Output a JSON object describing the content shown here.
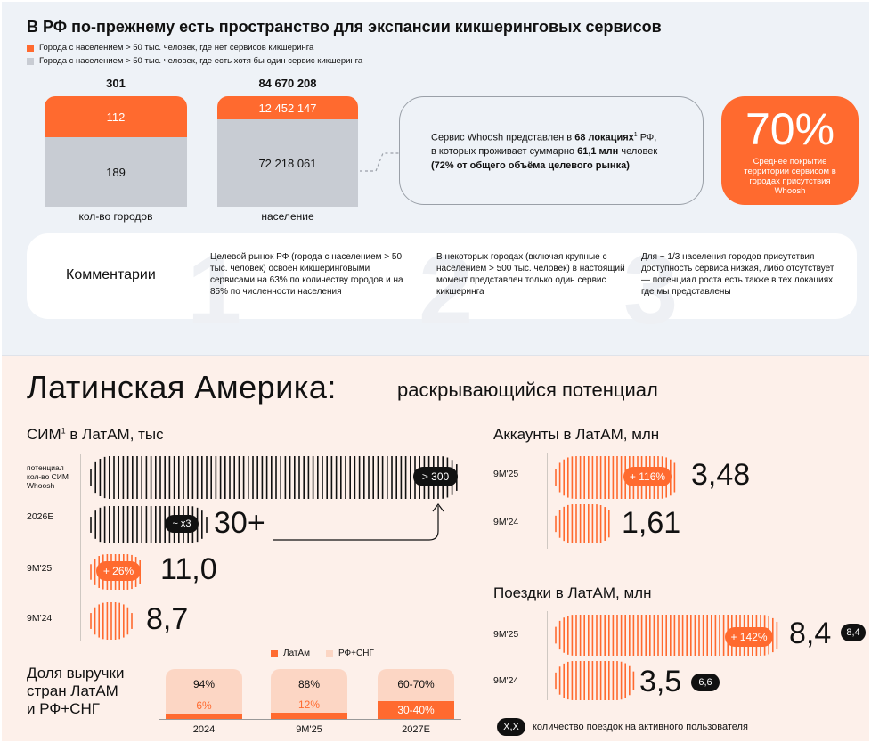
{
  "top": {
    "title": "В РФ по-прежнему есть пространство для экспансии кикшеринговых сервисов",
    "legend": [
      {
        "label": "Города с населением > 50 тыс. человек, где нет сервисов кикшеринга",
        "color": "#ff6a2f"
      },
      {
        "label": "Города с населением > 50 тыс. человек, где есть хотя бы один сервис кикшеринга",
        "color": "#c8ccd3"
      }
    ],
    "bars": [
      {
        "total": "301",
        "top_value": "112",
        "bottom_value": "189",
        "label": "кол-во городов"
      },
      {
        "total": "84 670 208",
        "top_value": "12 452 147",
        "bottom_value": "72 218 061",
        "label": "население"
      }
    ],
    "whoosh": {
      "line1": "Сервис Whoosh представлен в",
      "line1_bold": "68 локациях",
      "line1_sup": "1",
      "line1_end": "РФ,",
      "line2": "в которых проживает суммарно",
      "line2_bold": "61,1 млн",
      "line2_end": "человек",
      "line3_bold": "(72% от общего объёма целевого рынка)"
    },
    "coverage": {
      "value": "70%",
      "text": "Среднее покрытие территории сервисом в городах присутствия Whoosh"
    },
    "comments": {
      "title": "Комментарии",
      "digits": [
        "1",
        "2",
        "3"
      ],
      "items": [
        "Целевой рынок РФ (города с населением > 50 тыс. человек) освоен кикшеринговыми сервисами на 63% по количеству городов и на 85% по численности населения",
        "В некоторых городах (включая крупные с населением > 500 тыс. человек) в настоящий момент представлен только один сервис кикшеринга",
        "Для ~ 1/3 населения городов присутствия доступность сервиса низкая, либо отсутствует — потенциал роста есть также в тех локациях, где мы представлены"
      ]
    }
  },
  "latam": {
    "title": "Латинская Америка:",
    "subtitle": "раскрывающийся потенциал",
    "sim": {
      "heading": "СИМ",
      "heading_sup": "1",
      "heading_end": "в ЛатАМ, тыс",
      "rows": [
        {
          "label": "потенциал кол-во СИМ Whoosh",
          "value": "> 300",
          "badge": ""
        },
        {
          "label": "2026E",
          "value": "30+",
          "badge": "~ x3"
        },
        {
          "label": "9М'25",
          "value": "11,0",
          "badge": "+ 26%"
        },
        {
          "label": "9М'24",
          "value": "8,7",
          "badge": ""
        }
      ]
    },
    "accounts": {
      "heading": "Аккаунты в ЛатАМ, млн",
      "rows": [
        {
          "label": "9М'25",
          "value": "3,48",
          "badge": "+ 116%"
        },
        {
          "label": "9М'24",
          "value": "1,61",
          "badge": ""
        }
      ]
    },
    "trips": {
      "heading": "Поездки в ЛатАМ, млн",
      "rows": [
        {
          "label": "9М'25",
          "value": "8,4",
          "badge": "+ 142%",
          "per_user": "8,4"
        },
        {
          "label": "9М'24",
          "value": "3,5",
          "badge": "",
          "per_user": "6,6"
        }
      ],
      "note_badge": "X,X",
      "note": "количество поездок на активного пользователя"
    },
    "share": {
      "heading_l1": "Доля выручки",
      "heading_l2": "стран ЛатАМ",
      "heading_l3": "и РФ+СНГ",
      "legend": [
        {
          "label": "ЛатАм",
          "color": "#ff6a2f"
        },
        {
          "label": "РФ+СНГ",
          "color": "#fcd6c4"
        }
      ],
      "columns": [
        {
          "label": "2024",
          "rf": "94%",
          "latam": "6%"
        },
        {
          "label": "9М'25",
          "rf": "88%",
          "latam": "12%"
        },
        {
          "label": "2027E",
          "rf": "60-70%",
          "latam": "30-40%"
        }
      ]
    }
  },
  "chart_data": [
    {
      "type": "bar",
      "title": "",
      "categories": [
        "кол-во городов",
        "население"
      ],
      "series": [
        {
          "name": "Города с населением > 50 тыс. человек, где есть хотя бы один сервис кикшеринга",
          "values": [
            189,
            72218061
          ]
        },
        {
          "name": "Города с населением > 50 тыс. человек, где нет сервисов кикшеринга",
          "values": [
            112,
            12452147
          ]
        }
      ]
    },
    {
      "type": "bar",
      "title": "СИМ в ЛатАМ, тыс",
      "categories": [
        "потенциал кол-во СИМ Whoosh",
        "2026E",
        "9М'25",
        "9М'24"
      ],
      "values": [
        300,
        30,
        11.0,
        8.7
      ]
    },
    {
      "type": "bar",
      "title": "Аккаунты в ЛатАМ, млн",
      "categories": [
        "9М'25",
        "9М'24"
      ],
      "values": [
        3.48,
        1.61
      ]
    },
    {
      "type": "bar",
      "title": "Поездки в ЛатАМ, млн",
      "categories": [
        "9М'25",
        "9М'24"
      ],
      "values": [
        8.4,
        3.5
      ]
    },
    {
      "type": "bar",
      "title": "Доля выручки стран ЛатАМ и РФ+СНГ",
      "categories": [
        "2024",
        "9М'25",
        "2027E"
      ],
      "series": [
        {
          "name": "ЛатАм",
          "values": [
            6,
            12,
            35
          ]
        },
        {
          "name": "РФ+СНГ",
          "values": [
            94,
            88,
            65
          ]
        }
      ]
    }
  ]
}
